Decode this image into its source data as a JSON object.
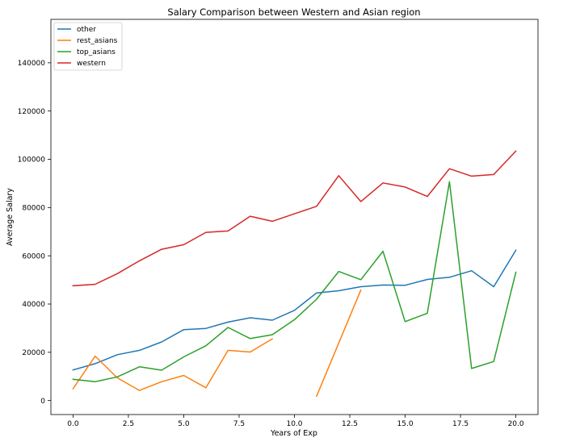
{
  "chart_data": {
    "type": "line",
    "title": "Salary Comparison between Western and Asian region",
    "xlabel": "Years of Exp",
    "ylabel": "Average Salary",
    "xlim": [
      -1,
      21
    ],
    "ylim": [
      -5800,
      158000
    ],
    "xticks": [
      0.0,
      2.5,
      5.0,
      7.5,
      10.0,
      12.5,
      15.0,
      17.5,
      20.0
    ],
    "xtick_labels": [
      "0.0",
      "2.5",
      "5.0",
      "7.5",
      "10.0",
      "12.5",
      "15.0",
      "17.5",
      "20.0"
    ],
    "yticks": [
      0,
      20000,
      40000,
      60000,
      80000,
      100000,
      120000,
      140000
    ],
    "ytick_labels": [
      "0",
      "20000",
      "40000",
      "60000",
      "80000",
      "100000",
      "120000",
      "140000"
    ],
    "grid": false,
    "legend_position": "top-left",
    "series": [
      {
        "name": "other",
        "color": "#1f77b4",
        "x": [
          0,
          1,
          2,
          3,
          4,
          5,
          6,
          7,
          8,
          9,
          10,
          11,
          12,
          13,
          14,
          15,
          16,
          17,
          18,
          19,
          20
        ],
        "values": [
          12700,
          15300,
          19000,
          20800,
          24300,
          29400,
          29900,
          32500,
          34300,
          33300,
          37400,
          44600,
          45500,
          47200,
          47900,
          47800,
          50200,
          51100,
          53800,
          47200,
          62300
        ]
      },
      {
        "name": "rest_asians",
        "color": "#ff7f0e",
        "segments": [
          {
            "x": [
              0,
              1,
              2,
              3,
              4,
              5,
              6,
              7,
              8,
              9
            ],
            "values": [
              4900,
              18400,
              9400,
              4200,
              7800,
              10400,
              5300,
              20800,
              20100,
              25600
            ]
          },
          {
            "x": [
              11,
              13
            ],
            "values": [
              1800,
              45800
            ]
          }
        ]
      },
      {
        "name": "top_asians",
        "color": "#2ca02c",
        "x": [
          0,
          1,
          2,
          3,
          4,
          5,
          6,
          7,
          8,
          9,
          10,
          11,
          12,
          13,
          14,
          15,
          16,
          17,
          18,
          19,
          20
        ],
        "values": [
          8800,
          7800,
          9800,
          14000,
          12600,
          18100,
          22700,
          30300,
          25700,
          27300,
          33500,
          42000,
          53500,
          50100,
          61900,
          32700,
          36200,
          90700,
          13300,
          16200,
          53200
        ]
      },
      {
        "name": "western",
        "color": "#d62728",
        "x": [
          0,
          1,
          2,
          3,
          4,
          5,
          6,
          7,
          8,
          9,
          10,
          11,
          12,
          13,
          14,
          15,
          16,
          17,
          18,
          19,
          20
        ],
        "values": [
          47600,
          48200,
          52600,
          57900,
          62700,
          64600,
          69700,
          70300,
          76400,
          74300,
          77400,
          80500,
          93200,
          82500,
          90200,
          88500,
          84600,
          96100,
          93000,
          93700,
          103400
        ]
      }
    ]
  }
}
